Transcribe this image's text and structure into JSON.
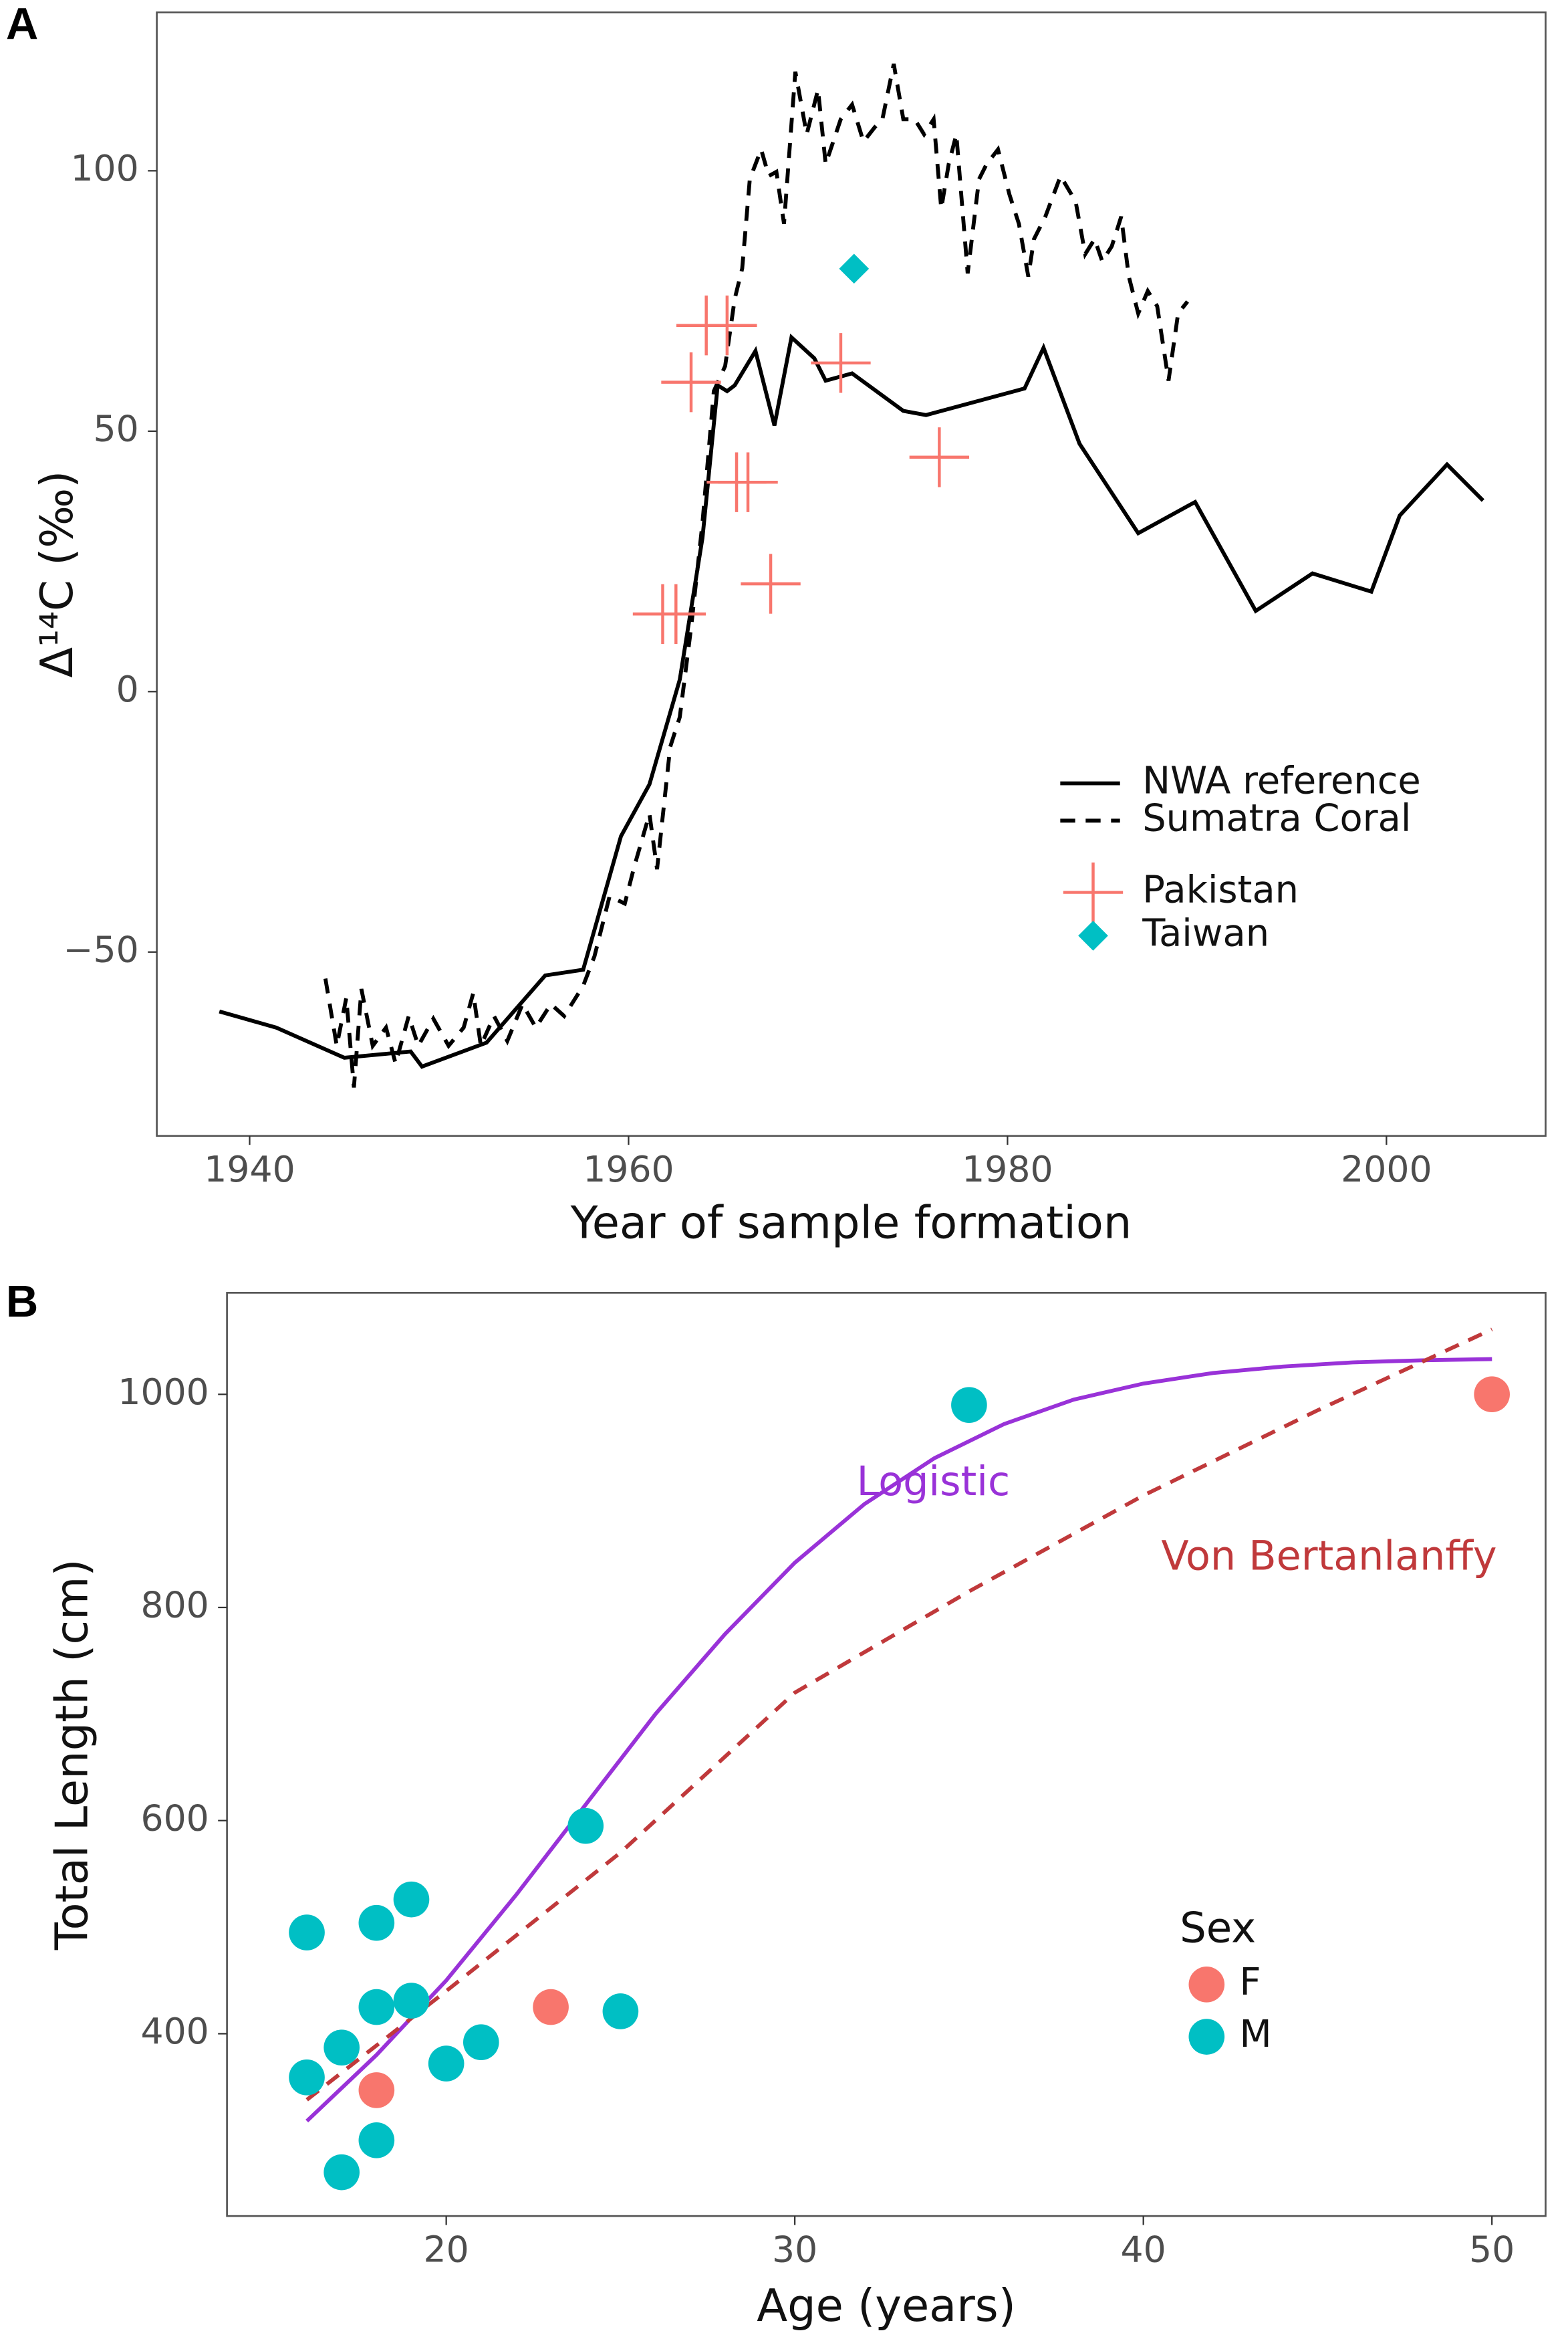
{
  "chart_data": [
    {
      "type": "line",
      "panel": "A",
      "x_label": "Year of sample formation",
      "y_label": "Δ¹⁴C (‰)",
      "xlim": [
        1935.1,
        2008.4
      ],
      "ylim": [
        -85.3,
        130.4
      ],
      "xticks": [
        1940,
        1960,
        1980,
        2000
      ],
      "yticks": [
        {
          "value": -50,
          "label": "−50"
        },
        0,
        50,
        100
      ],
      "grid": false,
      "series": [
        {
          "name": "NWA reference",
          "type": "line",
          "dash": "solid",
          "color": "#000000",
          "x": [
            1938.4,
            1941.4,
            1945.0,
            1948.5,
            1949.1,
            1952.5,
            1955.6,
            1957.6,
            1959.6,
            1961.1,
            1962.7,
            1963.9,
            1964.7,
            1965.2,
            1965.6,
            1966.7,
            1967.7,
            1968.6,
            1969.8,
            1970.4,
            1971.8,
            1974.5,
            1975.7,
            1980.9,
            1981.9,
            1983.8,
            1986.9,
            1989.9,
            1993.1,
            1996.1,
            1999.2,
            2000.7,
            2003.2,
            2005.1
          ],
          "values": [
            -61.4,
            -64.5,
            -70.3,
            -69.1,
            -72,
            -67.4,
            -54.5,
            -53.4,
            -27.8,
            -17.8,
            2.3,
            29.5,
            58.8,
            57.7,
            58.8,
            65.4,
            51.1,
            68,
            64,
            59.7,
            61.1,
            53.9,
            53.1,
            58.2,
            66,
            47.6,
            30.4,
            36.4,
            15.5,
            22.7,
            19.2,
            33.8,
            43.6,
            36.7
          ]
        },
        {
          "name": "Sumatra Coral",
          "type": "line",
          "dash": "dashed",
          "color": "#000000",
          "x": [
            1944.0,
            1944.6,
            1945.1,
            1945.5,
            1945.9,
            1946.5,
            1947.2,
            1947.7,
            1948.4,
            1948.9,
            1949.7,
            1950.5,
            1951.3,
            1951.8,
            1952.2,
            1952.9,
            1953.6,
            1954.4,
            1955.1,
            1955.9,
            1956.6,
            1957.6,
            1958.2,
            1959.0,
            1959.8,
            1960.3,
            1961.1,
            1961.5,
            1962.2,
            1962.7,
            1963.3,
            1963.9,
            1964.5,
            1965.1,
            1965.6,
            1966.0,
            1966.4,
            1967.0,
            1967.4,
            1967.8,
            1968.2,
            1968.8,
            1969.4,
            1970.0,
            1970.4,
            1971.2,
            1971.8,
            1972.4,
            1973.0,
            1973.4,
            1974.0,
            1974.5,
            1975.1,
            1975.6,
            1976.1,
            1976.5,
            1976.9,
            1977.3,
            1977.9,
            1978.5,
            1978.9,
            1979.5,
            1980.1,
            1980.6,
            1981.1,
            1981.4,
            1982.0,
            1982.8,
            1983.6,
            1984.1,
            1984.6,
            1985.0,
            1985.5,
            1986.0,
            1986.4,
            1986.9,
            1987.4,
            1987.9,
            1988.5,
            1989.0,
            1989.5
          ],
          "values": [
            -55.1,
            -68,
            -58.8,
            -76,
            -57.1,
            -68,
            -64.5,
            -71.4,
            -62.3,
            -68,
            -62.8,
            -68,
            -64.5,
            -57.9,
            -68,
            -62.3,
            -67.1,
            -60,
            -64.5,
            -60,
            -62.3,
            -56.5,
            -50.8,
            -39.3,
            -40.7,
            -33.6,
            -23.5,
            -34.1,
            -10.6,
            -4.9,
            12.3,
            32.4,
            57.7,
            62.5,
            75.4,
            81.2,
            98.4,
            104.1,
            99,
            99.8,
            89.8,
            119,
            107,
            115.6,
            101.3,
            109.9,
            112.7,
            105.6,
            108.4,
            109.9,
            120.5,
            109.9,
            109.9,
            107,
            109.9,
            92.7,
            101.3,
            107,
            80.3,
            98.4,
            101.3,
            104.1,
            95.5,
            89.8,
            79.7,
            86.9,
            91.2,
            99,
            94.1,
            84,
            86.9,
            82.6,
            85.5,
            91.2,
            79.7,
            72.6,
            76.9,
            74,
            59.7,
            72.6,
            74.9
          ]
        },
        {
          "name": "Pakistan",
          "type": "scatter",
          "marker": "plus",
          "color": "#F8766D",
          "x": [
            1961.8,
            1962.5,
            1963.3,
            1964.1,
            1965.2,
            1965.7,
            1966.3,
            1967.5,
            1971.2,
            1976.4
          ],
          "values": [
            14.9,
            14.9,
            59.4,
            70.3,
            70.3,
            40.2,
            40.2,
            20.7,
            63.1,
            45
          ]
        },
        {
          "name": "Taiwan",
          "type": "scatter",
          "marker": "diamond",
          "color": "#00BFC4",
          "x": [
            1971.9
          ],
          "values": [
            81.2
          ]
        }
      ]
    },
    {
      "type": "scatter",
      "panel": "B",
      "x_label": "Age (years)",
      "y_label": "Total Length (cm)",
      "xlim": [
        13.71,
        51.54
      ],
      "ylim": [
        228.9,
        1095.3
      ],
      "xticks": [
        20,
        30,
        40,
        50
      ],
      "yticks": [
        400,
        600,
        800,
        1000
      ],
      "grid": false,
      "legend_title": "Sex",
      "series": [
        {
          "name": "F",
          "type": "scatter",
          "marker": "circle",
          "color": "#F8766D",
          "x": [
            18,
            23,
            50
          ],
          "values": [
            347,
            425,
            1000
          ]
        },
        {
          "name": "M",
          "type": "scatter",
          "marker": "circle",
          "color": "#00BFC4",
          "x": [
            16,
            16,
            17,
            17,
            18,
            18,
            18,
            19,
            19,
            20,
            21,
            24,
            25,
            35
          ],
          "values": [
            495,
            359,
            387,
            270,
            504,
            425,
            300,
            526,
            431,
            372,
            392,
            595,
            421,
            990
          ]
        }
      ],
      "fits": [
        {
          "name": "Logistic",
          "color": "#9932D8",
          "dash": "solid",
          "x": [
            16,
            18,
            20,
            22,
            24,
            26,
            28,
            30,
            32,
            34,
            36,
            38,
            40,
            42,
            44,
            46,
            48,
            50
          ],
          "values": [
            318,
            380,
            450,
            530,
            615,
            700,
            775,
            842,
            897,
            940,
            972,
            995,
            1010,
            1020,
            1026,
            1030,
            1032,
            1033
          ]
        },
        {
          "name": "Von Bertanlanffy",
          "color": "#C0393B",
          "dash": "dashed",
          "x": [
            16,
            20,
            25,
            30,
            35,
            40,
            45,
            50
          ],
          "values": [
            338,
            440,
            570,
            720,
            815,
            905,
            985,
            1061
          ]
        }
      ]
    }
  ]
}
